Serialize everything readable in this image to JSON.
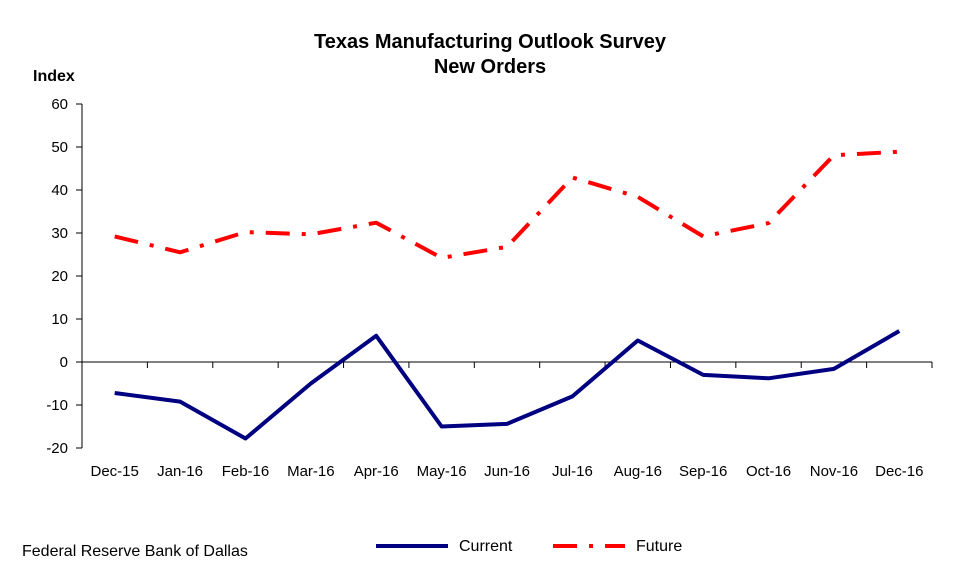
{
  "source_note": "Federal Reserve Bank of Dallas",
  "chart_data": {
    "type": "line",
    "title": "Texas Manufacturing Outlook Survey",
    "subtitle": "New Orders",
    "xlabel": "",
    "ylabel": "Index",
    "ylim": [
      -20,
      60
    ],
    "yticks": [
      60,
      50,
      40,
      30,
      20,
      10,
      0,
      -10,
      -20
    ],
    "ytick_labels": [
      "60",
      "50",
      "40",
      "30",
      "20",
      "10",
      "0",
      "-10",
      "-20"
    ],
    "categories": [
      "Dec-15",
      "Jan-16",
      "Feb-16",
      "Mar-16",
      "Apr-16",
      "May-16",
      "Jun-16",
      "Jul-16",
      "Aug-16",
      "Sep-16",
      "Oct-16",
      "Nov-16",
      "Dec-16"
    ],
    "grid": false,
    "legend_position": "bottom",
    "series": [
      {
        "name": "Current",
        "color": "#000080",
        "style": "solid",
        "values": [
          -7.2,
          -9.2,
          -17.8,
          -5.0,
          6.1,
          -15.0,
          -14.4,
          -8.0,
          5.0,
          -3.0,
          -3.8,
          -1.6,
          7.2
        ]
      },
      {
        "name": "Future",
        "color": "#ff0000",
        "style": "dash-dot",
        "values": [
          29.2,
          25.5,
          30.2,
          29.7,
          32.4,
          24.2,
          26.8,
          42.9,
          38.4,
          29.2,
          32.3,
          48.1,
          48.9
        ]
      }
    ]
  }
}
